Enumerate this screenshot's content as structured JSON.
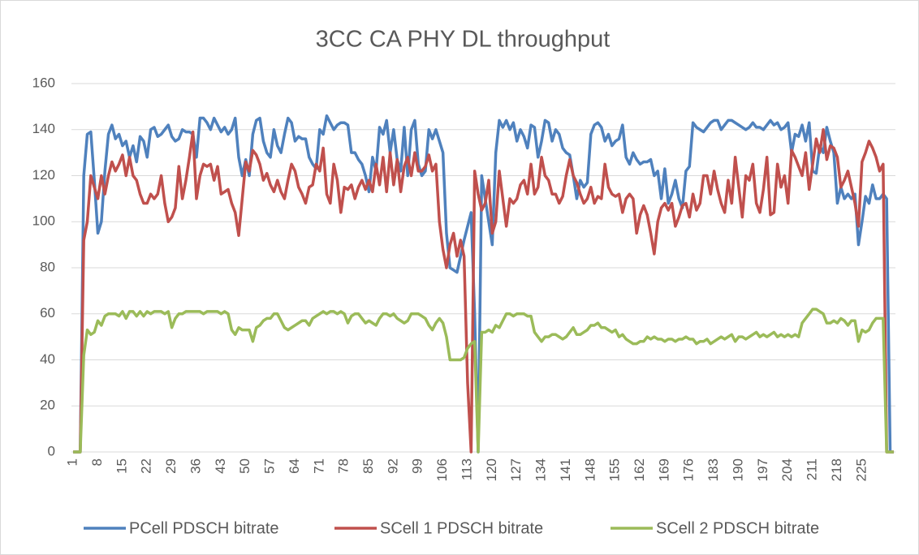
{
  "chart_data": {
    "type": "line",
    "title": "3CC CA PHY DL throughput",
    "ylim": [
      0,
      160
    ],
    "yticks": [
      0,
      20,
      40,
      60,
      80,
      100,
      120,
      140,
      160
    ],
    "grid": true,
    "legend": "bottom",
    "categories": [
      "1",
      null,
      null,
      null,
      null,
      null,
      null,
      "8",
      null,
      null,
      null,
      null,
      null,
      null,
      "15",
      null,
      null,
      null,
      null,
      null,
      null,
      "22",
      null,
      null,
      null,
      null,
      null,
      null,
      "29",
      null,
      null,
      null,
      null,
      null,
      null,
      "36",
      null,
      null,
      null,
      null,
      null,
      null,
      "43",
      null,
      null,
      null,
      null,
      null,
      null,
      "50",
      null,
      null,
      null,
      null,
      null,
      null,
      "57",
      null,
      null,
      null,
      null,
      null,
      null,
      "64",
      null,
      null,
      null,
      null,
      null,
      null,
      "71",
      null,
      null,
      null,
      null,
      null,
      null,
      "78",
      null,
      null,
      null,
      null,
      null,
      null,
      "85",
      null,
      null,
      null,
      null,
      null,
      null,
      "92",
      null,
      null,
      null,
      null,
      null,
      null,
      "99",
      null,
      null,
      null,
      null,
      null,
      null,
      "106",
      null,
      null,
      null,
      null,
      null,
      null,
      "113",
      null,
      null,
      null,
      null,
      null,
      null,
      "120",
      null,
      null,
      null,
      null,
      null,
      null,
      "127",
      null,
      null,
      null,
      null,
      null,
      null,
      "134",
      null,
      null,
      null,
      null,
      null,
      null,
      "141",
      null,
      null,
      null,
      null,
      null,
      null,
      "148",
      null,
      null,
      null,
      null,
      null,
      null,
      "155",
      null,
      null,
      null,
      null,
      null,
      null,
      "162",
      null,
      null,
      null,
      null,
      null,
      null,
      "169",
      null,
      null,
      null,
      null,
      null,
      null,
      "176",
      null,
      null,
      null,
      null,
      null,
      null,
      "183",
      null,
      null,
      null,
      null,
      null,
      null,
      "190",
      null,
      null,
      null,
      null,
      null,
      null,
      "197",
      null,
      null,
      null,
      null,
      null,
      null,
      "204",
      null,
      null,
      null,
      null,
      null,
      null,
      "211",
      null,
      null,
      null,
      null,
      null,
      null,
      "218",
      null,
      null,
      null,
      null,
      null,
      null,
      "225",
      null,
      null,
      null,
      null,
      null,
      null,
      null,
      null,
      null
    ],
    "series": [
      {
        "name": "PCell PDSCH bitrate",
        "color": "#4f81bd",
        "values": [
          0,
          0,
          0,
          120,
          138,
          139,
          118,
          95,
          100,
          122,
          138,
          142,
          136,
          138,
          133,
          135,
          128,
          133,
          126,
          137,
          135,
          128,
          140,
          141,
          137,
          138,
          140,
          142,
          137,
          135,
          136,
          140,
          139,
          139,
          138,
          128,
          145,
          145,
          143,
          140,
          145,
          142,
          139,
          141,
          138,
          140,
          145,
          128,
          120,
          127,
          120,
          138,
          144,
          145,
          135,
          130,
          128,
          140,
          133,
          130,
          138,
          145,
          143,
          135,
          137,
          136,
          136,
          128,
          125,
          123,
          140,
          138,
          146,
          143,
          140,
          142,
          143,
          143,
          142,
          130,
          130,
          127,
          125,
          120,
          113,
          128,
          122,
          141,
          138,
          144,
          130,
          140,
          127,
          122,
          141,
          120,
          140,
          144,
          125,
          120,
          122,
          140,
          136,
          140,
          135,
          130,
          95,
          80,
          79,
          78,
          85,
          92,
          98,
          104,
          60,
          0,
          120,
          110,
          100,
          90,
          130,
          144,
          141,
          144,
          140,
          143,
          135,
          140,
          137,
          132,
          142,
          141,
          128,
          135,
          144,
          143,
          135,
          140,
          138,
          132,
          130,
          129,
          120,
          110,
          118,
          115,
          117,
          138,
          142,
          143,
          141,
          135,
          138,
          133,
          135,
          136,
          142,
          128,
          125,
          130,
          127,
          125,
          126,
          126,
          127,
          120,
          122,
          110,
          123,
          108,
          112,
          118,
          110,
          106,
          122,
          124,
          143,
          141,
          140,
          139,
          141,
          143,
          144,
          144,
          140,
          142,
          144,
          144,
          143,
          142,
          141,
          140,
          141,
          143,
          141,
          141,
          140,
          142,
          144,
          142,
          143,
          140,
          141,
          143,
          130,
          138,
          137,
          142,
          135,
          143,
          122,
          121,
          133,
          130,
          141,
          135,
          130,
          108,
          115,
          110,
          112,
          110,
          112,
          90,
          100,
          111,
          108,
          116,
          110,
          110,
          112,
          110,
          0,
          0
        ]
      },
      {
        "name": "SCell 1 PDSCH bitrate",
        "color": "#c0504d",
        "values": [
          0,
          0,
          0,
          92,
          100,
          120,
          115,
          110,
          120,
          112,
          120,
          126,
          122,
          125,
          129,
          120,
          128,
          120,
          118,
          112,
          108,
          108,
          112,
          110,
          112,
          120,
          108,
          100,
          102,
          106,
          124,
          110,
          118,
          128,
          139,
          110,
          120,
          125,
          124,
          125,
          118,
          124,
          112,
          113,
          114,
          108,
          104,
          94,
          110,
          126,
          122,
          131,
          129,
          125,
          118,
          121,
          116,
          113,
          118,
          113,
          110,
          118,
          125,
          122,
          115,
          112,
          108,
          115,
          116,
          125,
          122,
          132,
          112,
          108,
          125,
          118,
          104,
          115,
          114,
          116,
          110,
          115,
          118,
          114,
          118,
          113,
          125,
          116,
          128,
          113,
          130,
          116,
          127,
          113,
          124,
          128,
          120,
          130,
          122,
          122,
          124,
          129,
          122,
          125,
          100,
          88,
          80,
          90,
          95,
          85,
          92,
          85,
          30,
          0,
          122,
          112,
          105,
          108,
          118,
          95,
          100,
          122,
          110,
          98,
          110,
          108,
          110,
          116,
          118,
          112,
          125,
          112,
          115,
          128,
          120,
          118,
          112,
          112,
          108,
          111,
          120,
          127,
          120,
          117,
          112,
          108,
          110,
          115,
          108,
          111,
          110,
          125,
          115,
          112,
          111,
          112,
          104,
          110,
          112,
          110,
          95,
          103,
          107,
          103,
          95,
          86,
          100,
          106,
          108,
          105,
          108,
          98,
          102,
          107,
          108,
          102,
          112,
          105,
          108,
          120,
          120,
          112,
          122,
          114,
          108,
          104,
          118,
          108,
          128,
          115,
          102,
          120,
          118,
          125,
          108,
          104,
          114,
          128,
          103,
          104,
          125,
          115,
          120,
          108,
          131,
          128,
          124,
          120,
          130,
          114,
          125,
          136,
          130,
          140,
          127,
          133,
          132,
          128,
          115,
          118,
          122,
          115,
          108,
          98,
          126,
          130,
          135,
          132,
          128,
          122,
          125,
          0,
          0,
          0
        ]
      },
      {
        "name": "SCell 2 PDSCH bitrate",
        "color": "#9bbb59",
        "values": [
          0,
          0,
          0,
          42,
          53,
          51,
          52,
          57,
          55,
          59,
          60,
          60,
          60,
          59,
          61,
          58,
          61,
          61,
          59,
          61,
          59,
          61,
          60,
          61,
          61,
          61,
          60,
          61,
          54,
          58,
          60,
          60,
          61,
          61,
          61,
          61,
          61,
          60,
          61,
          61,
          61,
          61,
          60,
          61,
          60,
          53,
          51,
          54,
          53,
          53,
          53,
          48,
          54,
          55,
          57,
          58,
          58,
          60,
          60,
          57,
          54,
          53,
          54,
          55,
          56,
          57,
          57,
          55,
          58,
          59,
          60,
          61,
          60,
          61,
          61,
          60,
          61,
          60,
          56,
          59,
          60,
          60,
          58,
          56,
          57,
          56,
          55,
          58,
          60,
          60,
          59,
          60,
          58,
          57,
          56,
          57,
          60,
          60,
          60,
          59,
          58,
          55,
          53,
          56,
          58,
          56,
          50,
          40,
          40,
          40,
          40,
          41,
          45,
          47,
          48,
          0,
          52,
          52,
          53,
          52,
          55,
          54,
          57,
          60,
          60,
          59,
          60,
          60,
          60,
          59,
          59,
          52,
          50,
          48,
          50,
          50,
          51,
          51,
          50,
          49,
          50,
          52,
          54,
          51,
          51,
          52,
          53,
          55,
          55,
          56,
          54,
          54,
          53,
          52,
          53,
          50,
          51,
          49,
          48,
          47,
          47,
          48,
          48,
          50,
          49,
          50,
          49,
          49,
          48,
          49,
          49,
          48,
          49,
          49,
          50,
          49,
          49,
          47,
          48,
          48,
          49,
          47,
          48,
          49,
          50,
          49,
          50,
          51,
          48,
          50,
          50,
          49,
          50,
          51,
          52,
          50,
          51,
          50,
          51,
          52,
          50,
          51,
          50,
          51,
          50,
          51,
          50,
          56,
          58,
          60,
          62,
          62,
          61,
          60,
          56,
          56,
          57,
          56,
          58,
          57,
          55,
          57,
          57,
          48,
          53,
          52,
          53,
          56,
          58,
          58,
          58,
          0,
          0,
          0
        ]
      }
    ]
  }
}
